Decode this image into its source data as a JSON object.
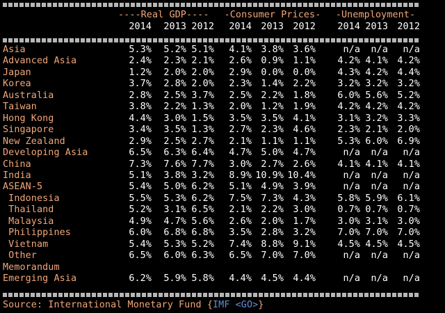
{
  "groups": [
    {
      "label": "----Real GDP----"
    },
    {
      "label": "-Consumer Prices-"
    },
    {
      "label": "-Unemployment-"
    }
  ],
  "years": [
    "2014",
    "2013",
    "2012"
  ],
  "rows": [
    {
      "label": "Asia",
      "values": [
        "5.3%",
        "5.2%",
        "5.1%",
        "4.1%",
        "3.8%",
        "3.6%",
        "n/a",
        "n/a",
        "n/a"
      ]
    },
    {
      "label": "Advanced Asia",
      "values": [
        "2.4%",
        "2.3%",
        "2.1%",
        "2.6%",
        "0.9%",
        "1.1%",
        "4.2%",
        "4.1%",
        "4.2%"
      ]
    },
    {
      "label": "Japan",
      "values": [
        "1.2%",
        "2.0%",
        "2.0%",
        "2.9%",
        "0.0%",
        "0.0%",
        "4.3%",
        "4.2%",
        "4.4%"
      ]
    },
    {
      "label": "Korea",
      "values": [
        "3.7%",
        "2.8%",
        "2.0%",
        "2.3%",
        "1.4%",
        "2.2%",
        "3.2%",
        "3.2%",
        "3.2%"
      ]
    },
    {
      "label": "Australia",
      "values": [
        "2.8%",
        "2.5%",
        "3.7%",
        "2.5%",
        "2.2%",
        "1.8%",
        "6.0%",
        "5.6%",
        "5.2%"
      ]
    },
    {
      "label": "Taiwan",
      "values": [
        "3.8%",
        "2.2%",
        "1.3%",
        "2.0%",
        "1.2%",
        "1.9%",
        "4.2%",
        "4.2%",
        "4.2%"
      ]
    },
    {
      "label": "Hong Kong",
      "values": [
        "4.4%",
        "3.0%",
        "1.5%",
        "3.5%",
        "3.5%",
        "4.1%",
        "3.1%",
        "3.2%",
        "3.3%"
      ]
    },
    {
      "label": "Singapore",
      "values": [
        "3.4%",
        "3.5%",
        "1.3%",
        "2.7%",
        "2.3%",
        "4.6%",
        "2.3%",
        "2.1%",
        "2.0%"
      ]
    },
    {
      "label": "New Zealand",
      "values": [
        "2.9%",
        "2.5%",
        "2.7%",
        "2.1%",
        "1.1%",
        "1.1%",
        "5.3%",
        "6.0%",
        "6.9%"
      ]
    },
    {
      "label": "Developing Asia",
      "values": [
        "6.5%",
        "6.3%",
        "6.4%",
        "4.7%",
        "5.0%",
        "4.7%",
        "n/a",
        "n/a",
        "n/a"
      ]
    },
    {
      "label": "China",
      "values": [
        "7.3%",
        "7.6%",
        "7.7%",
        "3.0%",
        "2.7%",
        "2.6%",
        "4.1%",
        "4.1%",
        "4.1%"
      ]
    },
    {
      "label": "India",
      "values": [
        "5.1%",
        "3.8%",
        "3.2%",
        "8.9%",
        "10.9%",
        "10.4%",
        "n/a",
        "n/a",
        "n/a"
      ]
    },
    {
      "label": "ASEAN-5",
      "values": [
        "5.4%",
        "5.0%",
        "6.2%",
        "5.1%",
        "4.9%",
        "3.9%",
        "n/a",
        "n/a",
        "n/a"
      ]
    },
    {
      "label": " Indonesia",
      "values": [
        "5.5%",
        "5.3%",
        "6.2%",
        "7.5%",
        "7.3%",
        "4.3%",
        "5.8%",
        "5.9%",
        "6.1%"
      ]
    },
    {
      "label": " Thailand",
      "values": [
        "5.2%",
        "3.1%",
        "6.5%",
        "2.1%",
        "2.2%",
        "3.0%",
        "0.7%",
        "0.7%",
        "0.7%"
      ]
    },
    {
      "label": " Malaysia",
      "values": [
        "4.9%",
        "4.7%",
        "5.6%",
        "2.6%",
        "2.0%",
        "1.7%",
        "3.0%",
        "3.1%",
        "3.0%"
      ]
    },
    {
      "label": " Philippines",
      "values": [
        "6.0%",
        "6.8%",
        "6.8%",
        "3.5%",
        "2.8%",
        "3.2%",
        "7.0%",
        "7.0%",
        "7.0%"
      ]
    },
    {
      "label": " Vietnam",
      "values": [
        "5.4%",
        "5.3%",
        "5.2%",
        "7.4%",
        "8.8%",
        "9.1%",
        "4.5%",
        "4.5%",
        "4.5%"
      ]
    },
    {
      "label": " Other",
      "values": [
        "6.5%",
        "6.0%",
        "6.3%",
        "6.5%",
        "7.0%",
        "7.0%",
        "n/a",
        "n/a",
        "n/a"
      ]
    },
    {
      "label": "Memorandum",
      "values": [
        "",
        "",
        "",
        "",
        "",
        "",
        "",
        "",
        ""
      ]
    },
    {
      "label": "Emerging Asia",
      "values": [
        "6.2%",
        "5.9%",
        "5.8%",
        "4.4%",
        "4.5%",
        "4.4%",
        "n/a",
        "n/a",
        "n/a"
      ]
    }
  ],
  "source": {
    "text": "Source: International Monetary Fund {",
    "link": "IMF <GO>",
    "end": "}"
  },
  "colors": {
    "label": "#f2a77a",
    "value": "#ffffff",
    "link": "#5f8fd8",
    "background": "#000000"
  }
}
